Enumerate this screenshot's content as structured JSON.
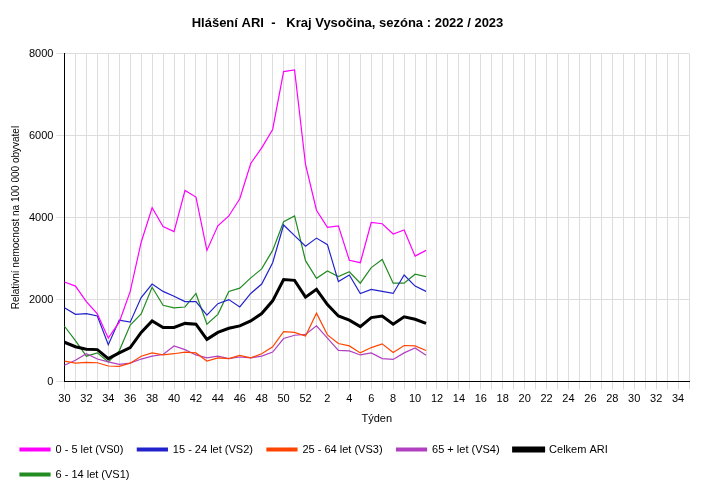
{
  "chart_data": {
    "type": "line",
    "title": "Hlášení ARI  -   Kraj Vysočina, sezóna : 2022 / 2023",
    "x_label": "Týden",
    "y_label": "Relativní nemocnost na 100 000 obyvatel",
    "categories": [
      "30",
      null,
      "32",
      null,
      "34",
      null,
      "36",
      null,
      "38",
      null,
      "40",
      null,
      "42",
      null,
      "44",
      null,
      "46",
      null,
      "48",
      null,
      "50",
      null,
      "52",
      null,
      "2",
      null,
      "4",
      null,
      "6",
      null,
      "8",
      null,
      "10",
      null,
      "12",
      null,
      "14",
      null,
      "16",
      null,
      "18",
      null,
      "20",
      null,
      "22",
      null,
      "24",
      null,
      "26",
      null,
      "28",
      null,
      "30",
      null,
      "32",
      null,
      "34",
      null
    ],
    "ylim": [
      0,
      8000
    ],
    "yticks": [
      0,
      2000,
      4000,
      6000,
      8000
    ],
    "grid": true,
    "legend": "bottom",
    "series": [
      {
        "name": "0 - 5 let (VS0)",
        "color": "#ff00ff",
        "line_style": "solid",
        "values": [
          2430,
          2330,
          1950,
          1650,
          1060,
          1450,
          2200,
          3400,
          4240,
          3780,
          3660,
          4660,
          4500,
          3200,
          3800,
          4040,
          4460,
          5320,
          5700,
          6150,
          7560,
          7600,
          5300,
          4180,
          3760,
          3800,
          2960,
          2900,
          3880,
          3850,
          3600,
          3700,
          3060,
          3200,
          null,
          null,
          null,
          null,
          null,
          null,
          null,
          null,
          null,
          null,
          null,
          null,
          null,
          null,
          null,
          null,
          null,
          null,
          null,
          null,
          null,
          null,
          null,
          null
        ]
      },
      {
        "name": "15 - 24 let (VS2)",
        "color": "#2222cc",
        "line_style": "solid",
        "values": [
          1800,
          1640,
          1660,
          1600,
          900,
          1500,
          1450,
          2050,
          2380,
          2200,
          2080,
          1950,
          1950,
          1620,
          1900,
          2000,
          1820,
          2150,
          2380,
          2900,
          3820,
          3560,
          3300,
          3500,
          3340,
          2440,
          2600,
          2150,
          2250,
          2200,
          2150,
          2600,
          2330,
          2200,
          null,
          null,
          null,
          null,
          null,
          null,
          null,
          null,
          null,
          null,
          null,
          null,
          null,
          null,
          null,
          null,
          null,
          null,
          null,
          null,
          null,
          null,
          null,
          null
        ]
      },
      {
        "name": "25 - 64 let (VS3)",
        "color": "#ff4500",
        "line_style": "solid",
        "values": [
          500,
          450,
          470,
          460,
          380,
          370,
          450,
          620,
          700,
          650,
          680,
          720,
          700,
          500,
          580,
          560,
          640,
          580,
          680,
          850,
          1220,
          1200,
          1110,
          1670,
          1140,
          930,
          870,
          700,
          830,
          920,
          710,
          880,
          870,
          760,
          null,
          null,
          null,
          null,
          null,
          null,
          null,
          null,
          null,
          null,
          null,
          null,
          null,
          null,
          null,
          null,
          null,
          null,
          null,
          null,
          null,
          null,
          null,
          null
        ]
      },
      {
        "name": "65 + let (VS4)",
        "color": "#b040c0",
        "line_style": "solid",
        "values": [
          400,
          520,
          680,
          550,
          480,
          420,
          450,
          550,
          620,
          660,
          870,
          780,
          650,
          580,
          620,
          560,
          600,
          580,
          620,
          720,
          1050,
          1130,
          1150,
          1360,
          1060,
          760,
          750,
          650,
          700,
          560,
          540,
          700,
          820,
          640,
          null,
          null,
          null,
          null,
          null,
          null,
          null,
          null,
          null,
          null,
          null,
          null,
          null,
          null,
          null,
          null,
          null,
          null,
          null,
          null,
          null,
          null,
          null,
          null
        ]
      },
      {
        "name": "Celkem ARI",
        "color": "#000000",
        "line_style": "thick",
        "values": [
          960,
          850,
          790,
          780,
          560,
          700,
          830,
          1200,
          1480,
          1320,
          1320,
          1420,
          1400,
          1030,
          1200,
          1300,
          1360,
          1480,
          1660,
          1970,
          2490,
          2470,
          2060,
          2250,
          1880,
          1600,
          1500,
          1340,
          1560,
          1600,
          1400,
          1580,
          1520,
          1420,
          null,
          null,
          null,
          null,
          null,
          null,
          null,
          null,
          null,
          null,
          null,
          null,
          null,
          null,
          null,
          null,
          null,
          null,
          null,
          null,
          null,
          null,
          null,
          null
        ]
      },
      {
        "name": "6 - 14 let (VS1)",
        "color": "#228b22",
        "line_style": "solid",
        "values": [
          1350,
          1000,
          620,
          700,
          480,
          750,
          1380,
          1650,
          2300,
          1860,
          1800,
          1820,
          2150,
          1400,
          1640,
          2200,
          2280,
          2530,
          2750,
          3200,
          3900,
          4040,
          2950,
          2520,
          2700,
          2560,
          2680,
          2400,
          2780,
          2980,
          2400,
          2400,
          2620,
          2560,
          null,
          null,
          null,
          null,
          null,
          null,
          null,
          null,
          null,
          null,
          null,
          null,
          null,
          null,
          null,
          null,
          null,
          null,
          null,
          null,
          null,
          null,
          null,
          null
        ]
      }
    ]
  }
}
